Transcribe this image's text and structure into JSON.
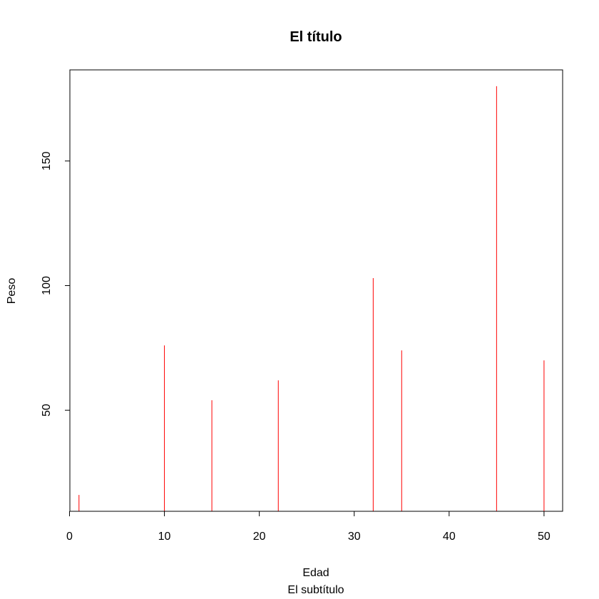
{
  "chart_data": {
    "type": "bar",
    "title": "El título",
    "subtitle": "El subtítulo",
    "xlabel": "Edad",
    "ylabel": "Peso",
    "x": [
      1,
      10,
      15,
      22,
      32,
      35,
      45,
      50
    ],
    "values": [
      16,
      76,
      54,
      62,
      103,
      74,
      180,
      70
    ],
    "xlim": [
      0.04,
      51.96
    ],
    "ylim": [
      9.44,
      186.56
    ],
    "xticks": [
      0,
      10,
      20,
      30,
      40,
      50
    ],
    "yticks": [
      50,
      100,
      150
    ],
    "grid": false,
    "legend": "none",
    "color": "#ff0000"
  }
}
